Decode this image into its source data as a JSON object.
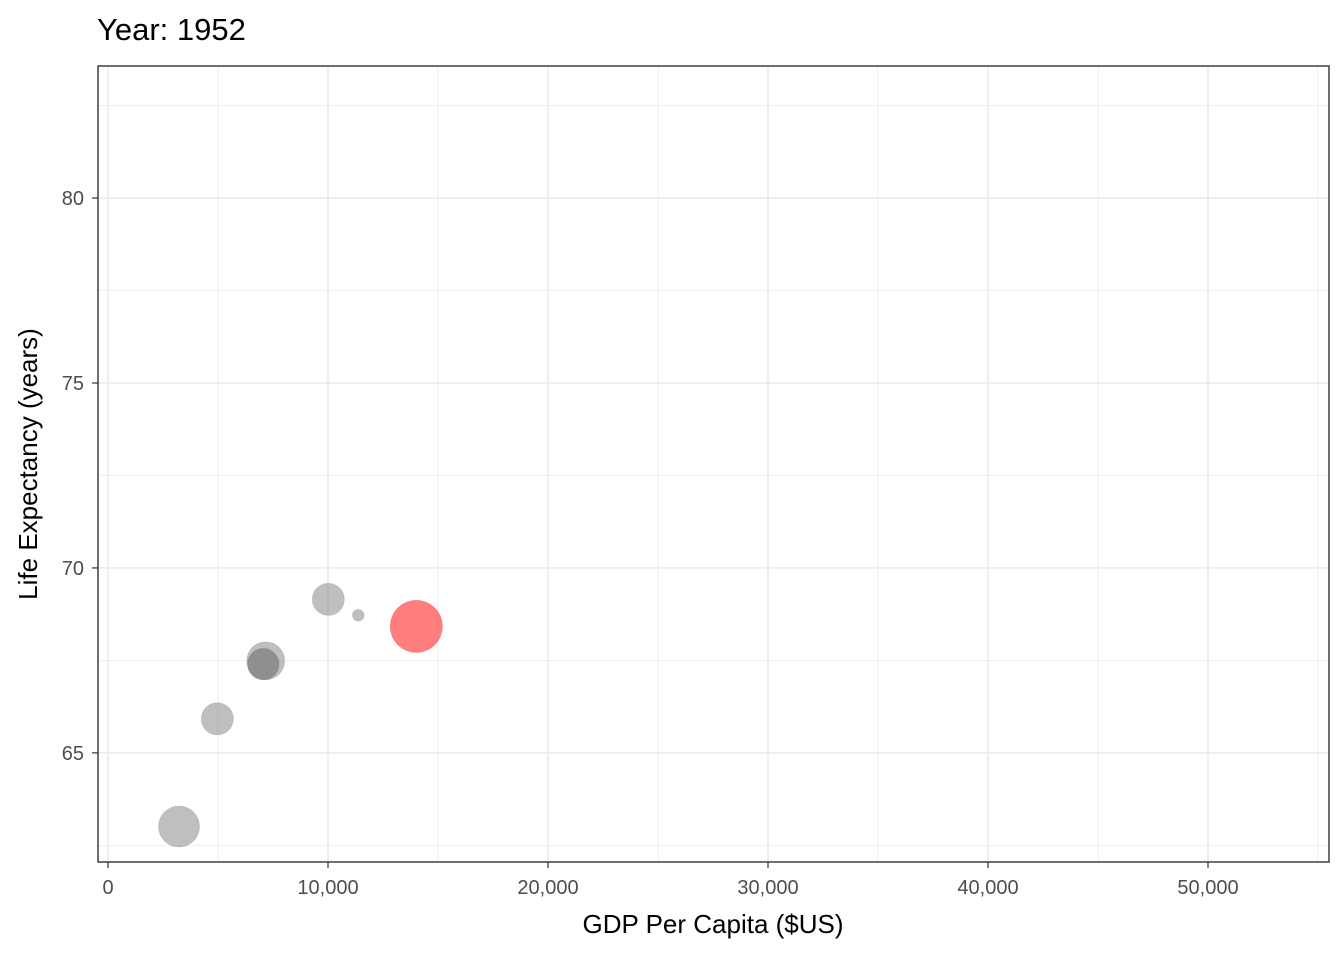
{
  "chart_data": {
    "type": "scatter",
    "title": "Year: 1952",
    "xlabel": "GDP Per Capita ($US)",
    "ylabel": "Life Expectancy (years)",
    "xlim": [
      -455,
      55500
    ],
    "ylim": [
      62.05,
      83.57
    ],
    "xticks": [
      0,
      10000,
      20000,
      30000,
      40000,
      50000
    ],
    "xtick_labels": [
      "0",
      "10,000",
      "20,000",
      "30,000",
      "40,000",
      "50,000"
    ],
    "yticks": [
      65,
      70,
      75,
      80
    ],
    "ytick_labels": [
      "65",
      "70",
      "75",
      "80"
    ],
    "grid": true,
    "legend": "none",
    "points": [
      {
        "x": 3227,
        "y": 63.01,
        "size": 0.62,
        "color": "#7f7f7f"
      },
      {
        "x": 4968,
        "y": 65.92,
        "size": 0.38,
        "color": "#7f7f7f"
      },
      {
        "x": 7168,
        "y": 67.49,
        "size": 0.53,
        "color": "#7f7f7f"
      },
      {
        "x": 7059,
        "y": 67.4,
        "size": 0.36,
        "color": "#7f7f7f"
      },
      {
        "x": 7059,
        "y": 67.4,
        "size": 0.36,
        "color": "#7f7f7f"
      },
      {
        "x": 10014,
        "y": 69.15,
        "size": 0.38,
        "color": "#7f7f7f"
      },
      {
        "x": 11377,
        "y": 68.72,
        "size": 0.05,
        "color": "#7f7f7f"
      },
      {
        "x": 14014,
        "y": 68.42,
        "size": 1.0,
        "color": "#ff0000"
      }
    ]
  }
}
